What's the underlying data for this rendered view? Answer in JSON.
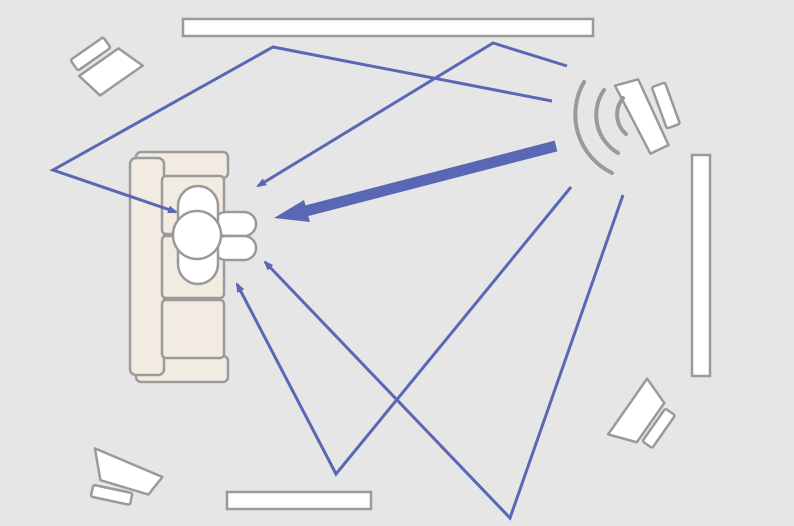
{
  "colors": {
    "background": "#e6e6e6",
    "reflection_path": "#5a67b4",
    "panel_stroke": "#999999",
    "panel_fill": "#ffffff",
    "sofa_fill": "#f1ebe2",
    "sofa_stroke": "#9b9b9b",
    "sound_waves": "#9a9a9a"
  },
  "diagram": {
    "description_icons": [
      "speaker-icon",
      "sofa-icon",
      "listener-icon",
      "absorber-panel-icon",
      "sound-wave-icon"
    ],
    "active_speaker_position": "right",
    "paths": [
      "direct",
      "ceiling-left",
      "ceiling-right",
      "floor-bottom-left",
      "floor-bottom-right"
    ]
  }
}
